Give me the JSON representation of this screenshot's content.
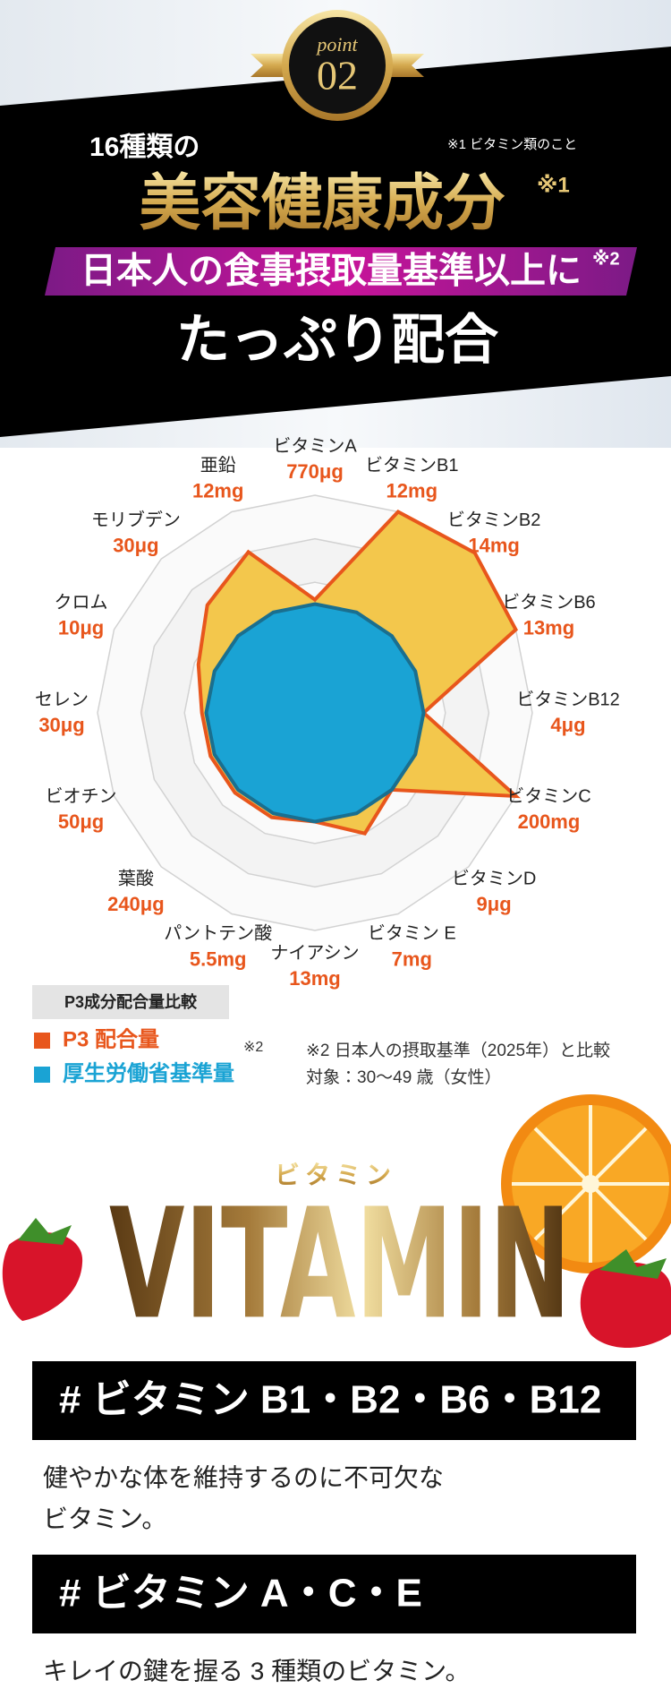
{
  "header": {
    "point_label": "point",
    "point_number": "02",
    "line1": "16種類の",
    "note": "※1 ビタミン類のこと",
    "headline": "美容健康成分",
    "headline_mark": "※1",
    "band_text": "日本人の食事摂取量基準以上に",
    "band_mark": "※2",
    "closing": "たっぷり配合"
  },
  "chart_data": {
    "type": "radar",
    "categories": [
      "ビタミンA",
      "ビタミンB1",
      "ビタミンB2",
      "ビタミンB6",
      "ビタミンB12",
      "ビタミンC",
      "ビタミンD",
      "ビタミン E",
      "ナイアシン",
      "パントテン酸",
      "葉酸",
      "ビオチン",
      "セレン",
      "クロム",
      "モリブデン",
      "亜鉛"
    ],
    "amounts": [
      "770μg",
      "12mg",
      "14mg",
      "13mg",
      "4μg",
      "200mg",
      "9μg",
      "7mg",
      "13mg",
      "5.5mg",
      "240μg",
      "50μg",
      "30μg",
      "10μg",
      "30μg",
      "12mg"
    ],
    "series": [
      {
        "name": "P3 配合量",
        "color": "#e8561c",
        "fill": "#f3c74c",
        "values": [
          2.6,
          5,
          5.2,
          5,
          2.5,
          5,
          2.5,
          3,
          2.5,
          2.6,
          2.6,
          2.6,
          2.6,
          2.9,
          3.5,
          4
        ]
      },
      {
        "name": "厚生労働省基準量",
        "color": "#1a6f8f",
        "fill": "#1aa3d4",
        "values": [
          2.5,
          2.5,
          2.5,
          2.5,
          2.5,
          2.5,
          2.5,
          2.5,
          2.5,
          2.5,
          2.5,
          2.5,
          2.5,
          2.5,
          2.5,
          2.5
        ]
      }
    ],
    "rlim": [
      0,
      5
    ],
    "rticks": [
      1,
      2,
      3,
      4,
      5
    ],
    "grid": true,
    "legend_title": "P3成分配合量比較"
  },
  "footnotes": {
    "mark": "※2",
    "line1": "※2 日本人の摂取基準（2025年）と比較",
    "line2": "対象：30〜49 歳（女性）"
  },
  "vitamin": {
    "kana": "ビタミン",
    "word": "VITAMIN",
    "items": [
      {
        "tag": "# ビタミン B1・B2・B6・B12",
        "lines": [
          "健やかな体を維持するのに不可欠な",
          "ビタミン。"
        ]
      },
      {
        "tag": "# ビタミン A・C・E",
        "lines": [
          "キレイの鍵を握る 3 種類のビタミン。"
        ]
      }
    ]
  }
}
